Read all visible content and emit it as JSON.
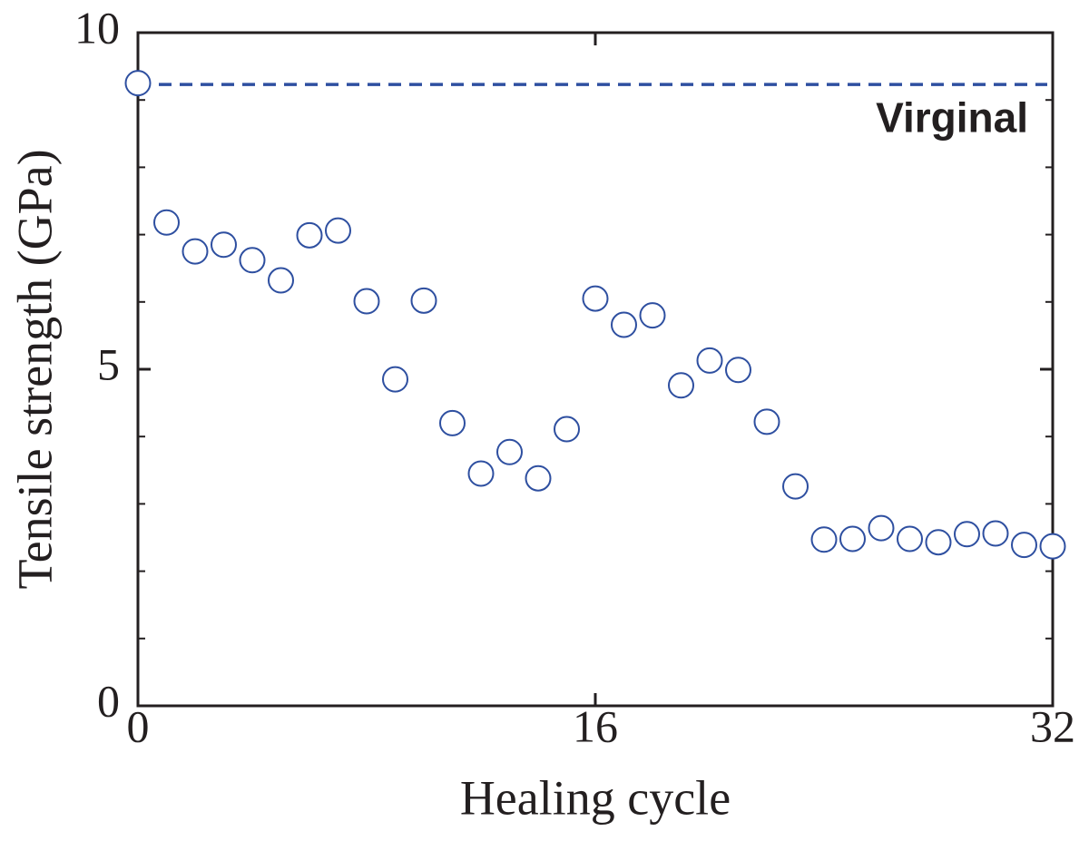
{
  "chart_data": {
    "type": "scatter",
    "xlabel": "Healing cycle",
    "ylabel": "Tensile strength (GPa)",
    "x": [
      0,
      1,
      2,
      3,
      4,
      5,
      6,
      7,
      8,
      9,
      10,
      11,
      12,
      13,
      14,
      15,
      16,
      17,
      18,
      19,
      20,
      21,
      22,
      23,
      24,
      25,
      26,
      27,
      28,
      29,
      30,
      31,
      32
    ],
    "series": [
      {
        "color": "#2e4fa0",
        "values": [
          9.25,
          7.18,
          6.75,
          6.85,
          6.62,
          6.32,
          6.99,
          7.06,
          6.01,
          4.85,
          6.02,
          4.2,
          3.45,
          3.77,
          3.38,
          4.11,
          6.05,
          5.66,
          5.8,
          4.76,
          5.13,
          4.99,
          4.22,
          3.26,
          2.47,
          2.48,
          2.64,
          2.48,
          2.43,
          2.55,
          2.56,
          2.39,
          2.37
        ]
      }
    ],
    "reference_line": {
      "value": 9.23,
      "label": "Virginal",
      "color": "#2e4fa0"
    },
    "xlim": [
      0,
      32
    ],
    "xticks": [
      0,
      16,
      32
    ],
    "ylim": [
      0,
      10
    ],
    "yticks": [
      0,
      5,
      10
    ],
    "yminorticks": [
      1,
      2,
      3,
      4,
      6,
      7,
      8,
      9
    ]
  }
}
